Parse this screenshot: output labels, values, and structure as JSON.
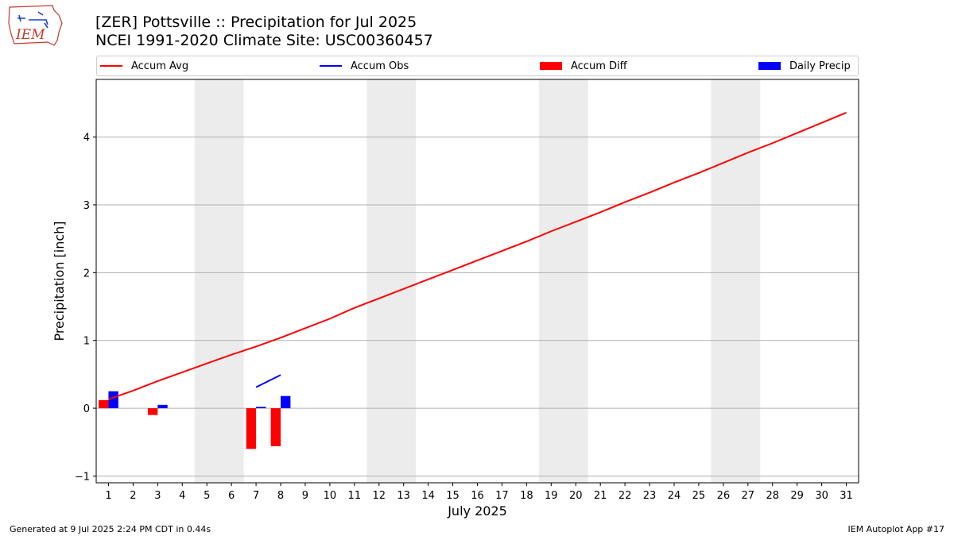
{
  "logo": {
    "text": "IEM"
  },
  "header": {
    "title_line1": "[ZER] Pottsville :: Precipitation for Jul 2025",
    "title_line2": "NCEI 1991-2020 Climate Site: USC00360457"
  },
  "legend": {
    "items": [
      {
        "label": "Accum Avg",
        "kind": "line",
        "color": "#ff0000"
      },
      {
        "label": "Accum Obs",
        "kind": "line",
        "color": "#0000ff"
      },
      {
        "label": "Accum Diff",
        "kind": "box",
        "color": "#ff0000"
      },
      {
        "label": "Daily Precip",
        "kind": "box",
        "color": "#0000ff"
      }
    ]
  },
  "chart_data": {
    "type": "bar",
    "title": "[ZER] Pottsville :: Precipitation for Jul 2025",
    "xlabel": "July 2025",
    "ylabel": "Precipitation [inch]",
    "xlim": [
      0.5,
      31.5
    ],
    "ylim": [
      -1.1,
      4.85
    ],
    "yticks": [
      -1,
      0,
      1,
      2,
      3,
      4
    ],
    "ytick_labels": [
      "−1",
      "0",
      "1",
      "2",
      "3",
      "4"
    ],
    "days": [
      1,
      2,
      3,
      4,
      5,
      6,
      7,
      8,
      9,
      10,
      11,
      12,
      13,
      14,
      15,
      16,
      17,
      18,
      19,
      20,
      21,
      22,
      23,
      24,
      25,
      26,
      27,
      28,
      29,
      30,
      31
    ],
    "weekend_shading": [
      [
        4.5,
        6.5
      ],
      [
        11.5,
        13.5
      ],
      [
        18.5,
        20.5
      ],
      [
        25.5,
        27.5
      ]
    ],
    "grid": "horizontal",
    "series": [
      {
        "name": "Accum Avg",
        "type": "line",
        "color": "#ff0000",
        "x": [
          1,
          2,
          3,
          4,
          5,
          6,
          7,
          8,
          9,
          10,
          11,
          12,
          13,
          14,
          15,
          16,
          17,
          18,
          19,
          20,
          21,
          22,
          23,
          24,
          25,
          26,
          27,
          28,
          29,
          30,
          31
        ],
        "values": [
          0.13,
          0.26,
          0.4,
          0.53,
          0.66,
          0.79,
          0.91,
          1.04,
          1.18,
          1.32,
          1.48,
          1.62,
          1.76,
          1.9,
          2.04,
          2.18,
          2.32,
          2.46,
          2.61,
          2.75,
          2.89,
          3.04,
          3.18,
          3.33,
          3.47,
          3.62,
          3.77,
          3.91,
          4.06,
          4.21,
          4.36
        ]
      },
      {
        "name": "Accum Obs",
        "type": "line",
        "color": "#0000ff",
        "x": [
          1,
          2,
          3,
          4,
          5,
          6,
          7,
          8
        ],
        "values": [
          null,
          null,
          null,
          null,
          null,
          null,
          0.31,
          0.49
        ]
      },
      {
        "name": "Accum Diff",
        "type": "bar",
        "color": "#ff0000",
        "offset": -0.2,
        "x": [
          1,
          2,
          3,
          4,
          5,
          6,
          7,
          8
        ],
        "values": [
          0.12,
          0,
          -0.1,
          0,
          0,
          0,
          -0.6,
          -0.56
        ]
      },
      {
        "name": "Daily Precip",
        "type": "bar",
        "color": "#0000ff",
        "offset": 0.2,
        "x": [
          1,
          2,
          3,
          4,
          5,
          6,
          7,
          8
        ],
        "values": [
          0.25,
          0,
          0.05,
          0,
          0,
          0,
          0.02,
          0.18
        ]
      }
    ]
  },
  "footer": {
    "left": "Generated at 9 Jul 2025 2:24 PM CDT in 0.44s",
    "right": "IEM Autoplot App #17"
  }
}
